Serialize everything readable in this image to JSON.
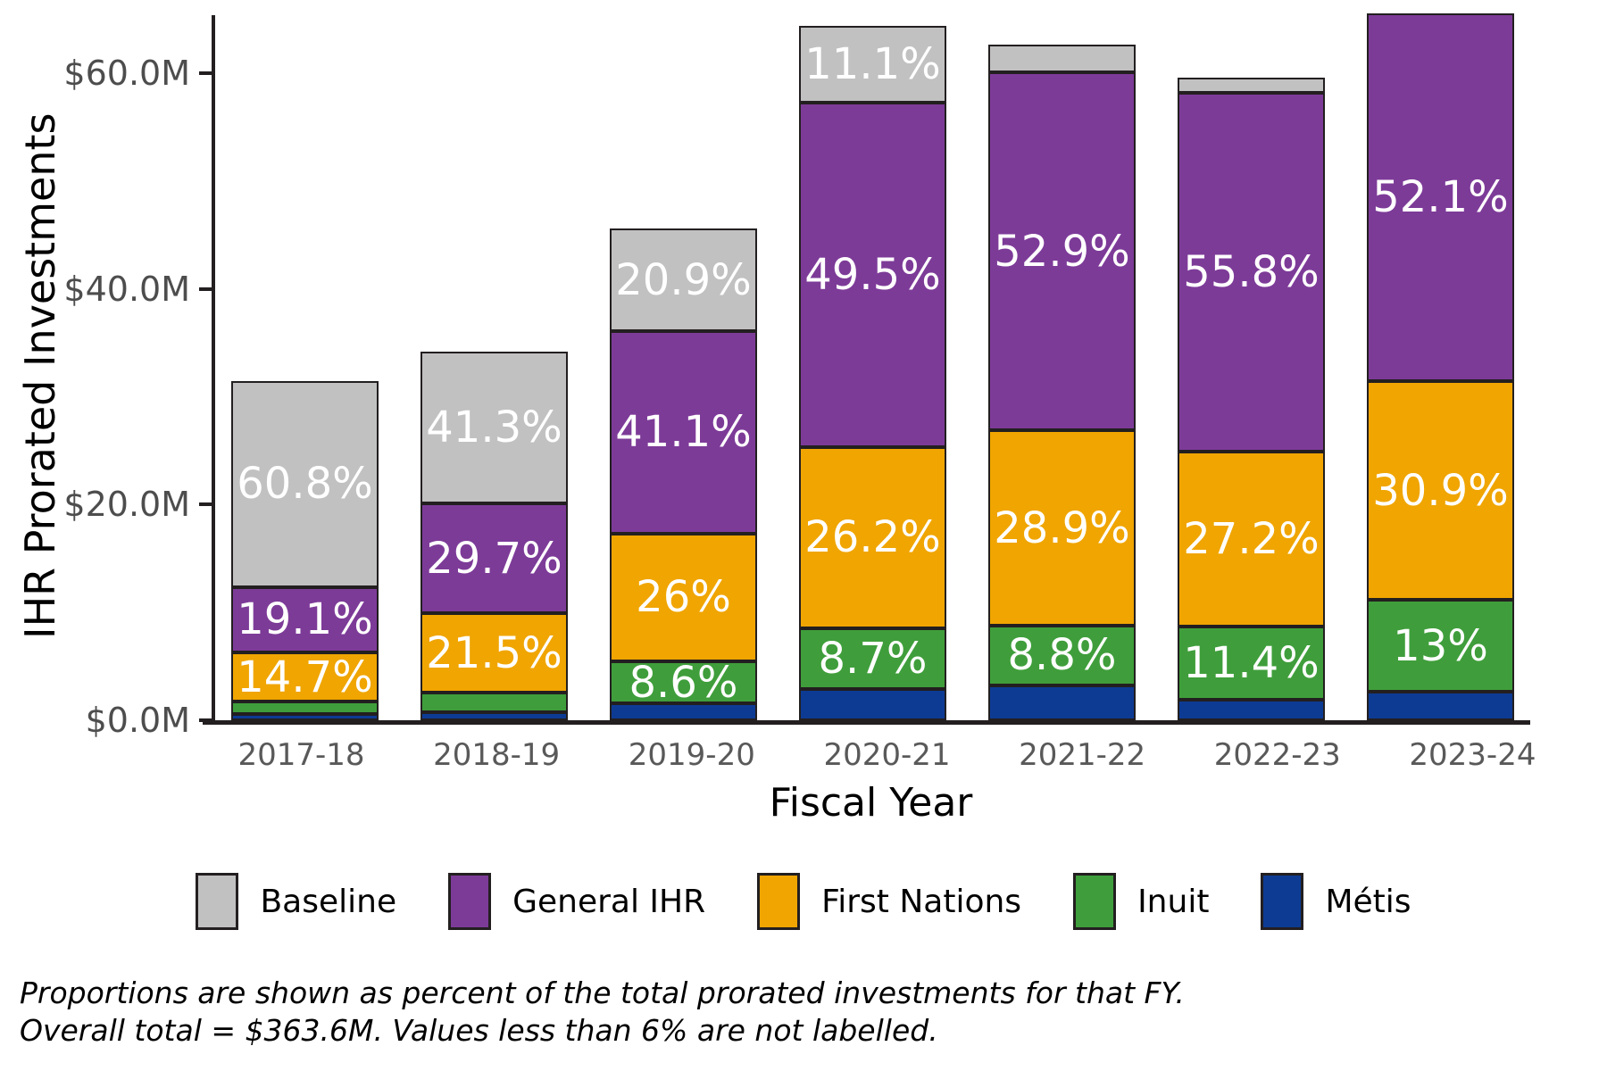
{
  "chart_data": {
    "type": "bar",
    "stacked": true,
    "xlabel": "Fiscal Year",
    "ylabel": "IHR Prorated Investments",
    "units": "$M",
    "ylim": [
      0,
      65.8
    ],
    "grid": false,
    "legend_position": "bottom",
    "categories": [
      "2017-18",
      "2018-19",
      "2019-20",
      "2020-21",
      "2021-22",
      "2022-23",
      "2023-24"
    ],
    "totals": [
      31.5,
      34.2,
      45.6,
      64.4,
      62.7,
      59.6,
      65.6
    ],
    "overall_total": "$363.6M",
    "series": [
      {
        "name": "Baseline",
        "color": "#c1c1c1",
        "values": [
          19.15,
          14.12,
          9.53,
          7.15,
          2.63,
          1.43,
          0
        ],
        "labels": [
          "60.8%",
          "41.3%",
          "20.9%",
          "11.1%",
          null,
          null,
          null
        ]
      },
      {
        "name": "General IHR",
        "color": "#7d3b98",
        "values": [
          6.02,
          10.16,
          18.74,
          31.88,
          33.17,
          33.26,
          34.18
        ],
        "labels": [
          "19.1%",
          "29.7%",
          "41.1%",
          "49.5%",
          "52.9%",
          "55.8%",
          "52.1%"
        ]
      },
      {
        "name": "First Nations",
        "color": "#f0a500",
        "values": [
          4.63,
          7.35,
          11.86,
          16.87,
          18.12,
          16.21,
          20.27
        ],
        "labels": [
          "14.7%",
          "21.5%",
          "26%",
          "26.2%",
          "28.9%",
          "27.2%",
          "30.9%"
        ]
      },
      {
        "name": "Inuit",
        "color": "#3f9e3b",
        "values": [
          1.13,
          1.82,
          3.92,
          5.6,
          5.52,
          6.79,
          8.53
        ],
        "labels": [
          null,
          null,
          "8.6%",
          "8.7%",
          "8.8%",
          "11.4%",
          "13%"
        ]
      },
      {
        "name": "Métis",
        "color": "#0d3b94",
        "values": [
          0.57,
          0.75,
          1.55,
          2.9,
          3.26,
          1.91,
          2.62
        ],
        "labels": [
          null,
          null,
          null,
          null,
          null,
          null,
          null
        ]
      }
    ],
    "y_ticks": [
      {
        "value": 0,
        "label": "$0.0M"
      },
      {
        "value": 20,
        "label": "$20.0M"
      },
      {
        "value": 40,
        "label": "$40.0M"
      },
      {
        "value": 60,
        "label": "$60.0M"
      }
    ],
    "label_text_color": "#ffffff",
    "segment_border_color": "#231f20",
    "tick_label_color": "#4d4d4d",
    "axis_color": "#231f20"
  },
  "caption": {
    "line1": "Proportions are shown as percent of the total prorated investments for that FY.",
    "line2": "Overall total = $363.6M. Values less than 6% are not labelled."
  }
}
